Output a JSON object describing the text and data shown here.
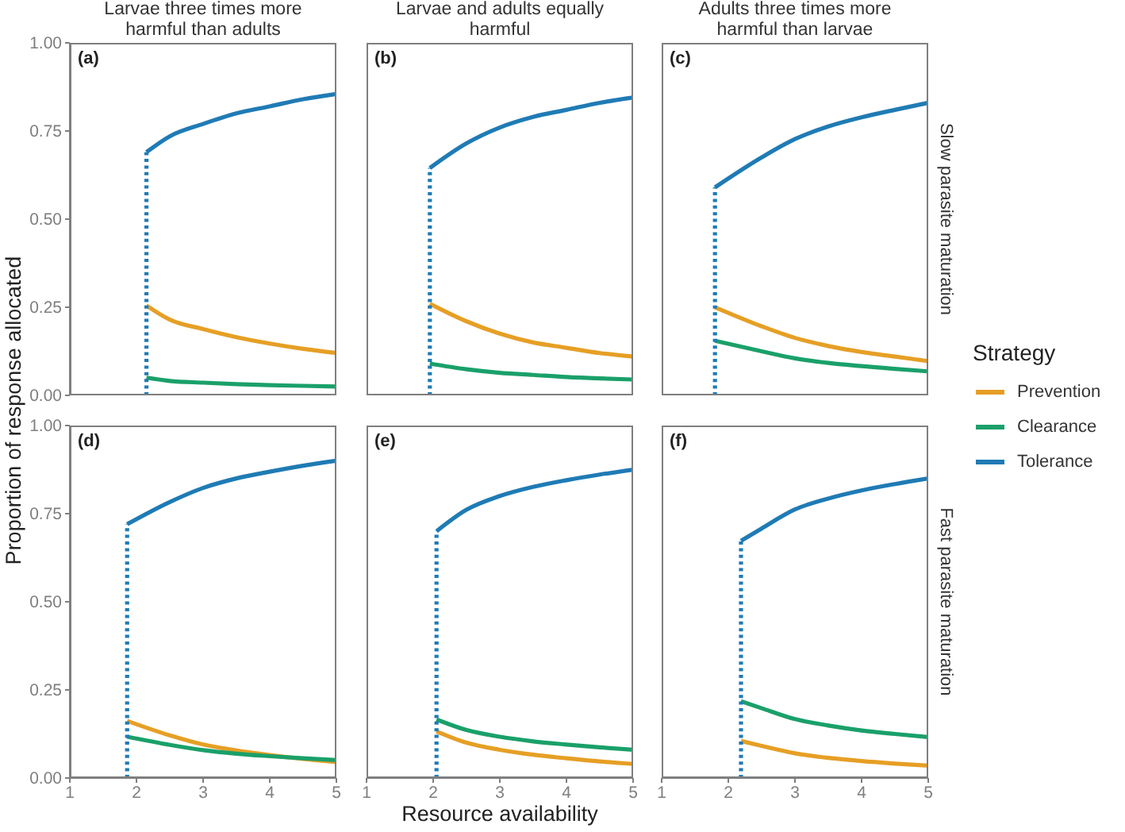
{
  "chart_data": [
    {
      "type": "line",
      "title": "Larvae three times more harmful than adults",
      "ylabel": "Proportion of response allocated",
      "annotations": [
        "(a)"
      ],
      "tick_labels": "y",
      "xlim": [
        1,
        5
      ],
      "ylim": [
        0,
        1
      ],
      "yticks": [
        {
          "value": 0,
          "label": "0.00"
        },
        {
          "value": 0.25,
          "label": "0.25"
        },
        {
          "value": 0.5,
          "label": "0.50"
        },
        {
          "value": 0.75,
          "label": "0.75"
        },
        {
          "value": 1,
          "label": "1.00"
        }
      ],
      "x": [
        2.15,
        2.5,
        3,
        3.5,
        4,
        4.5,
        5
      ],
      "series": [
        {
          "color": "#e69f25",
          "values": [
            0.255,
            0.215,
            0.188,
            0.165,
            0.147,
            0.132,
            0.12
          ]
        },
        {
          "color": "#1aa06a",
          "values": [
            0.05,
            0.041,
            0.036,
            0.032,
            0.029,
            0.027,
            0.025
          ]
        },
        {
          "color": "#1f7bb5",
          "values": [
            0.69,
            0.735,
            0.77,
            0.8,
            0.82,
            0.84,
            0.855
          ]
        },
        {
          "color": "#1f7bb5",
          "line_style": "dotted",
          "x": [
            2.15,
            2.15
          ],
          "values": [
            0,
            0.69
          ]
        }
      ]
    },
    {
      "type": "line",
      "title": "Larvae and adults equally harmful",
      "annotations": [
        "(b)"
      ],
      "tick_labels": false,
      "xlim": [
        1,
        5
      ],
      "ylim": [
        0,
        1
      ],
      "x": [
        1.95,
        2.5,
        3,
        3.5,
        4,
        4.5,
        5
      ],
      "series": [
        {
          "color": "#e69f25",
          "values": [
            0.26,
            0.21,
            0.175,
            0.15,
            0.135,
            0.12,
            0.11
          ]
        },
        {
          "color": "#1aa06a",
          "values": [
            0.09,
            0.074,
            0.064,
            0.058,
            0.052,
            0.048,
            0.045
          ]
        },
        {
          "color": "#1f7bb5",
          "values": [
            0.645,
            0.715,
            0.76,
            0.79,
            0.81,
            0.83,
            0.845
          ]
        },
        {
          "color": "#1f7bb5",
          "line_style": "dotted",
          "x": [
            1.95,
            1.95
          ],
          "values": [
            0,
            0.645
          ]
        }
      ]
    },
    {
      "type": "line",
      "title": "Adults three times more harmful than larvae",
      "subtitle": "Slow parasite maturation",
      "legend_title": "Strategy",
      "legend": "right",
      "annotations": [
        "(c)"
      ],
      "tick_labels": false,
      "xlim": [
        1,
        5
      ],
      "ylim": [
        0,
        1
      ],
      "x": [
        1.8,
        2.5,
        3,
        3.5,
        4,
        4.5,
        5
      ],
      "series": [
        {
          "name": "Prevention",
          "color": "#e69f25",
          "values": [
            0.25,
            0.196,
            0.163,
            0.14,
            0.123,
            0.11,
            0.097
          ]
        },
        {
          "name": "Clearance",
          "color": "#1aa06a",
          "values": [
            0.155,
            0.125,
            0.105,
            0.092,
            0.083,
            0.075,
            0.068
          ]
        },
        {
          "name": "Tolerance",
          "color": "#1f7bb5",
          "values": [
            0.59,
            0.675,
            0.727,
            0.763,
            0.789,
            0.81,
            0.83
          ]
        },
        {
          "color": "#1f7bb5",
          "line_style": "dotted",
          "x": [
            1.8,
            1.8
          ],
          "values": [
            0,
            0.59
          ]
        }
      ]
    },
    {
      "type": "line",
      "annotations": [
        "(d)"
      ],
      "xlim": [
        1,
        5
      ],
      "xticks": [
        1,
        2,
        3,
        4,
        5
      ],
      "ylim": [
        0,
        1
      ],
      "yticks": [
        {
          "value": 0,
          "label": "0.00"
        },
        {
          "value": 0.25,
          "label": "0.25"
        },
        {
          "value": 0.5,
          "label": "0.50"
        },
        {
          "value": 0.75,
          "label": "0.75"
        },
        {
          "value": 1,
          "label": "1.00"
        }
      ],
      "x": [
        1.86,
        2.5,
        3,
        3.5,
        4,
        4.5,
        5
      ],
      "series": [
        {
          "color": "#e69f25",
          "values": [
            0.162,
            0.121,
            0.095,
            0.078,
            0.065,
            0.054,
            0.045
          ]
        },
        {
          "color": "#1aa06a",
          "values": [
            0.117,
            0.094,
            0.079,
            0.069,
            0.062,
            0.056,
            0.051
          ]
        },
        {
          "color": "#1f7bb5",
          "values": [
            0.72,
            0.783,
            0.823,
            0.85,
            0.869,
            0.886,
            0.9
          ]
        },
        {
          "color": "#1f7bb5",
          "line_style": "dotted",
          "x": [
            1.86,
            1.86
          ],
          "values": [
            0,
            0.72
          ]
        }
      ]
    },
    {
      "type": "line",
      "xlabel": "Resource availability",
      "annotations": [
        "(e)"
      ],
      "tick_labels": "x",
      "xlim": [
        1,
        5
      ],
      "xticks": [
        1,
        2,
        3,
        4,
        5
      ],
      "ylim": [
        0,
        1
      ],
      "x": [
        2.05,
        2.5,
        3,
        3.5,
        4,
        4.5,
        5
      ],
      "series": [
        {
          "color": "#e69f25",
          "values": [
            0.132,
            0.1,
            0.08,
            0.066,
            0.056,
            0.047,
            0.04
          ]
        },
        {
          "color": "#1aa06a",
          "values": [
            0.166,
            0.136,
            0.117,
            0.104,
            0.095,
            0.087,
            0.08
          ]
        },
        {
          "color": "#1f7bb5",
          "values": [
            0.7,
            0.761,
            0.8,
            0.826,
            0.845,
            0.861,
            0.875
          ]
        },
        {
          "color": "#1f7bb5",
          "line_style": "dotted",
          "x": [
            2.05,
            2.05
          ],
          "values": [
            0,
            0.7
          ]
        }
      ]
    },
    {
      "type": "line",
      "subtitle": "Fast parasite maturation",
      "annotations": [
        "(f)"
      ],
      "tick_labels": "x",
      "xlim": [
        1,
        5
      ],
      "xticks": [
        1,
        2,
        3,
        4,
        5
      ],
      "ylim": [
        0,
        1
      ],
      "x": [
        2.19,
        2.5,
        3,
        3.5,
        4,
        4.5,
        5
      ],
      "series": [
        {
          "color": "#e69f25",
          "values": [
            0.105,
            0.091,
            0.07,
            0.057,
            0.048,
            0.041,
            0.035
          ]
        },
        {
          "color": "#1aa06a",
          "values": [
            0.218,
            0.198,
            0.167,
            0.149,
            0.135,
            0.125,
            0.116
          ]
        },
        {
          "color": "#1f7bb5",
          "values": [
            0.673,
            0.708,
            0.762,
            0.793,
            0.816,
            0.834,
            0.85
          ]
        },
        {
          "color": "#1f7bb5",
          "line_style": "dotted",
          "x": [
            2.19,
            2.19
          ],
          "values": [
            0,
            0.673
          ]
        }
      ]
    }
  ]
}
